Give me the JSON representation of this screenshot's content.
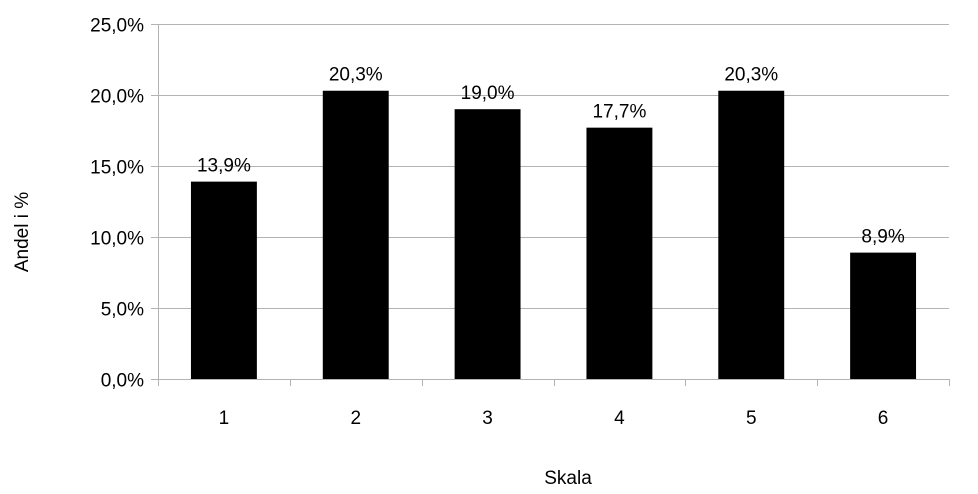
{
  "chart_data": {
    "type": "bar",
    "categories": [
      "1",
      "2",
      "3",
      "4",
      "5",
      "6"
    ],
    "values": [
      13.9,
      20.3,
      19.0,
      17.7,
      20.3,
      8.9
    ],
    "data_labels": [
      "13,9%",
      "20,3%",
      "19,0%",
      "17,7%",
      "20,3%",
      "8,9%"
    ],
    "y_ticks": [
      0,
      5,
      10,
      15,
      20,
      25
    ],
    "y_tick_labels": [
      "0,0%",
      "5,0%",
      "10,0%",
      "15,0%",
      "20,0%",
      "25,0%"
    ],
    "ylim": [
      0,
      25
    ],
    "xlabel": "Skala",
    "ylabel": "Andel i %",
    "title": "",
    "grid": "horizontal",
    "legend": "none",
    "colors": {
      "bar": "#000000",
      "grid": "#b3b3b3",
      "axis": "#b3b3b3",
      "text": "#000000"
    }
  }
}
